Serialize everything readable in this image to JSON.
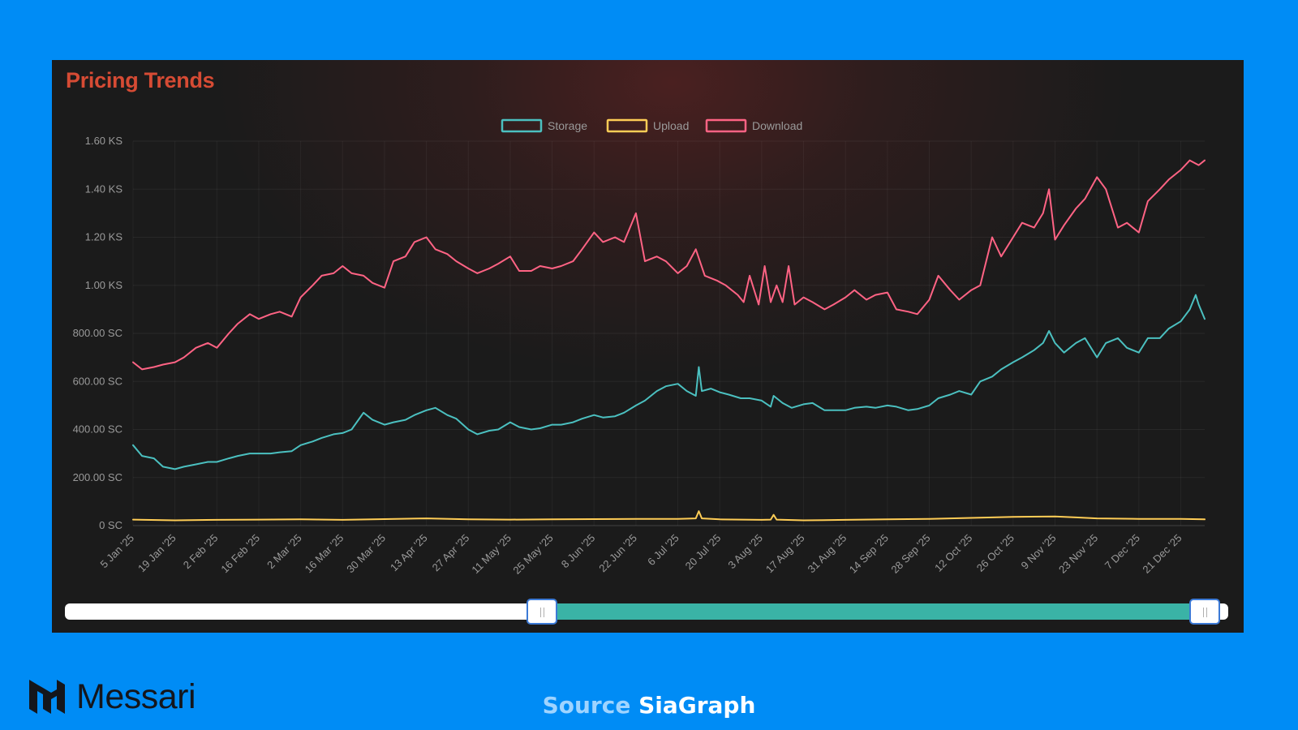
{
  "panel": {
    "title": "Pricing Trends"
  },
  "branding": {
    "logo_text": "Messari"
  },
  "source": {
    "label": "Source",
    "value": "SiaGraph"
  },
  "range_slider": {
    "start": 0.41,
    "end": 0.98,
    "fill_color": "#3ab3a6"
  },
  "chart_data": {
    "type": "line",
    "title": "Pricing Trends",
    "legend_position": "top-center",
    "grid": true,
    "y_tick_labels": [
      "0 SC",
      "200.00 SC",
      "400.00 SC",
      "600.00 SC",
      "800.00 SC",
      "1.00 KS",
      "1.20 KS",
      "1.40 KS",
      "1.60 KS"
    ],
    "y_unit": "SC",
    "ylim": [
      0,
      1600
    ],
    "x_tick_labels": [
      "5 Jan '25",
      "19 Jan '25",
      "2 Feb '25",
      "16 Feb '25",
      "2 Mar '25",
      "16 Mar '25",
      "30 Mar '25",
      "13 Apr '25",
      "27 Apr '25",
      "11 May '25",
      "25 May '25",
      "8 Jun '25",
      "22 Jun '25",
      "6 Jul '25",
      "20 Jul '25",
      "3 Aug '25",
      "17 Aug '25",
      "31 Aug '25",
      "14 Sep '25",
      "28 Sep '25",
      "12 Oct '25",
      "26 Oct '25",
      "9 Nov '25",
      "23 Nov '25",
      "7 Dec '25",
      "21 Dec '25"
    ],
    "x_range": [
      "2025-01-05",
      "2025-12-29"
    ],
    "series": [
      {
        "name": "Storage",
        "color": "#4bc0c0",
        "dates": [
          "2025-01-05",
          "2025-01-08",
          "2025-01-12",
          "2025-01-15",
          "2025-01-19",
          "2025-01-22",
          "2025-01-26",
          "2025-01-30",
          "2025-02-02",
          "2025-02-06",
          "2025-02-09",
          "2025-02-13",
          "2025-02-16",
          "2025-02-20",
          "2025-02-23",
          "2025-02-27",
          "2025-03-02",
          "2025-03-06",
          "2025-03-09",
          "2025-03-13",
          "2025-03-16",
          "2025-03-19",
          "2025-03-23",
          "2025-03-26",
          "2025-03-30",
          "2025-04-02",
          "2025-04-06",
          "2025-04-09",
          "2025-04-13",
          "2025-04-16",
          "2025-04-20",
          "2025-04-23",
          "2025-04-27",
          "2025-04-30",
          "2025-05-04",
          "2025-05-07",
          "2025-05-11",
          "2025-05-14",
          "2025-05-18",
          "2025-05-21",
          "2025-05-25",
          "2025-05-28",
          "2025-06-01",
          "2025-06-04",
          "2025-06-08",
          "2025-06-11",
          "2025-06-15",
          "2025-06-18",
          "2025-06-22",
          "2025-06-25",
          "2025-06-29",
          "2025-07-02",
          "2025-07-06",
          "2025-07-09",
          "2025-07-12",
          "2025-07-13",
          "2025-07-14",
          "2025-07-17",
          "2025-07-20",
          "2025-07-23",
          "2025-07-27",
          "2025-07-30",
          "2025-08-03",
          "2025-08-06",
          "2025-08-07",
          "2025-08-10",
          "2025-08-13",
          "2025-08-17",
          "2025-08-20",
          "2025-08-24",
          "2025-08-27",
          "2025-08-31",
          "2025-09-03",
          "2025-09-07",
          "2025-09-10",
          "2025-09-14",
          "2025-09-17",
          "2025-09-21",
          "2025-09-24",
          "2025-09-28",
          "2025-10-01",
          "2025-10-05",
          "2025-10-08",
          "2025-10-12",
          "2025-10-15",
          "2025-10-19",
          "2025-10-22",
          "2025-10-26",
          "2025-10-29",
          "2025-11-02",
          "2025-11-05",
          "2025-11-07",
          "2025-11-09",
          "2025-11-12",
          "2025-11-16",
          "2025-11-19",
          "2025-11-23",
          "2025-11-26",
          "2025-11-30",
          "2025-12-03",
          "2025-12-07",
          "2025-12-10",
          "2025-12-14",
          "2025-12-17",
          "2025-12-21",
          "2025-12-24",
          "2025-12-26",
          "2025-12-27",
          "2025-12-29"
        ],
        "values": [
          335,
          290,
          280,
          245,
          235,
          245,
          255,
          265,
          265,
          280,
          290,
          300,
          300,
          300,
          305,
          310,
          335,
          350,
          365,
          380,
          385,
          400,
          470,
          440,
          420,
          430,
          440,
          460,
          480,
          490,
          460,
          445,
          400,
          380,
          395,
          400,
          430,
          410,
          400,
          405,
          420,
          420,
          430,
          445,
          460,
          450,
          455,
          470,
          500,
          520,
          560,
          580,
          590,
          560,
          540,
          660,
          560,
          570,
          555,
          545,
          530,
          530,
          520,
          495,
          540,
          510,
          490,
          505,
          510,
          480,
          480,
          480,
          490,
          495,
          490,
          500,
          495,
          480,
          485,
          500,
          530,
          545,
          560,
          545,
          600,
          620,
          650,
          680,
          700,
          730,
          760,
          810,
          760,
          720,
          760,
          780,
          700,
          760,
          780,
          740,
          720,
          780,
          780,
          820,
          850,
          900,
          960,
          920,
          860
        ],
        "tooltip_label": "Storage"
      },
      {
        "name": "Upload",
        "color": "#ffcd56",
        "dates": [
          "2025-01-05",
          "2025-01-19",
          "2025-02-02",
          "2025-02-16",
          "2025-03-02",
          "2025-03-16",
          "2025-03-30",
          "2025-04-13",
          "2025-04-27",
          "2025-05-11",
          "2025-05-25",
          "2025-06-08",
          "2025-06-22",
          "2025-07-06",
          "2025-07-12",
          "2025-07-13",
          "2025-07-14",
          "2025-07-20",
          "2025-08-03",
          "2025-08-06",
          "2025-08-07",
          "2025-08-08",
          "2025-08-17",
          "2025-08-31",
          "2025-09-14",
          "2025-09-28",
          "2025-10-12",
          "2025-10-26",
          "2025-11-09",
          "2025-11-16",
          "2025-11-23",
          "2025-12-07",
          "2025-12-21",
          "2025-12-29"
        ],
        "values": [
          25,
          22,
          24,
          25,
          26,
          24,
          27,
          30,
          26,
          25,
          26,
          27,
          28,
          28,
          30,
          60,
          30,
          26,
          24,
          25,
          45,
          25,
          22,
          24,
          26,
          28,
          32,
          36,
          38,
          34,
          30,
          28,
          28,
          26
        ]
      },
      {
        "name": "Download",
        "color": "#ff6384",
        "dates": [
          "2025-01-05",
          "2025-01-08",
          "2025-01-12",
          "2025-01-15",
          "2025-01-19",
          "2025-01-22",
          "2025-01-26",
          "2025-01-30",
          "2025-02-02",
          "2025-02-06",
          "2025-02-09",
          "2025-02-13",
          "2025-02-16",
          "2025-02-20",
          "2025-02-23",
          "2025-02-27",
          "2025-03-02",
          "2025-03-06",
          "2025-03-09",
          "2025-03-13",
          "2025-03-16",
          "2025-03-19",
          "2025-03-23",
          "2025-03-26",
          "2025-03-30",
          "2025-04-02",
          "2025-04-06",
          "2025-04-09",
          "2025-04-13",
          "2025-04-16",
          "2025-04-20",
          "2025-04-23",
          "2025-04-27",
          "2025-04-30",
          "2025-05-04",
          "2025-05-07",
          "2025-05-11",
          "2025-05-14",
          "2025-05-18",
          "2025-05-21",
          "2025-05-25",
          "2025-05-28",
          "2025-06-01",
          "2025-06-04",
          "2025-06-08",
          "2025-06-11",
          "2025-06-15",
          "2025-06-18",
          "2025-06-22",
          "2025-06-25",
          "2025-06-29",
          "2025-07-02",
          "2025-07-06",
          "2025-07-09",
          "2025-07-12",
          "2025-07-15",
          "2025-07-19",
          "2025-07-22",
          "2025-07-26",
          "2025-07-28",
          "2025-07-30",
          "2025-08-02",
          "2025-08-04",
          "2025-08-06",
          "2025-08-08",
          "2025-08-10",
          "2025-08-12",
          "2025-08-14",
          "2025-08-17",
          "2025-08-20",
          "2025-08-24",
          "2025-08-27",
          "2025-08-31",
          "2025-09-03",
          "2025-09-07",
          "2025-09-10",
          "2025-09-14",
          "2025-09-17",
          "2025-09-21",
          "2025-09-24",
          "2025-09-28",
          "2025-10-01",
          "2025-10-05",
          "2025-10-08",
          "2025-10-12",
          "2025-10-15",
          "2025-10-19",
          "2025-10-22",
          "2025-10-26",
          "2025-10-29",
          "2025-11-02",
          "2025-11-05",
          "2025-11-07",
          "2025-11-09",
          "2025-11-12",
          "2025-11-16",
          "2025-11-19",
          "2025-11-23",
          "2025-11-26",
          "2025-11-30",
          "2025-12-03",
          "2025-12-07",
          "2025-12-10",
          "2025-12-14",
          "2025-12-17",
          "2025-12-21",
          "2025-12-24",
          "2025-12-27",
          "2025-12-29"
        ],
        "values": [
          680,
          650,
          660,
          670,
          680,
          700,
          740,
          760,
          740,
          800,
          840,
          880,
          860,
          880,
          890,
          870,
          950,
          1000,
          1040,
          1050,
          1080,
          1050,
          1040,
          1010,
          990,
          1100,
          1120,
          1180,
          1200,
          1150,
          1130,
          1100,
          1070,
          1050,
          1070,
          1090,
          1120,
          1060,
          1060,
          1080,
          1070,
          1080,
          1100,
          1150,
          1220,
          1180,
          1200,
          1180,
          1300,
          1100,
          1120,
          1100,
          1050,
          1080,
          1150,
          1040,
          1020,
          1000,
          960,
          930,
          1040,
          920,
          1080,
          930,
          1000,
          930,
          1080,
          920,
          950,
          930,
          900,
          920,
          950,
          980,
          940,
          960,
          970,
          900,
          890,
          880,
          940,
          1040,
          980,
          940,
          980,
          1000,
          1200,
          1120,
          1200,
          1260,
          1240,
          1300,
          1400,
          1190,
          1250,
          1320,
          1360,
          1450,
          1400,
          1240,
          1260,
          1220,
          1350,
          1400,
          1440,
          1480,
          1520,
          1500,
          1520
        ]
      }
    ]
  }
}
